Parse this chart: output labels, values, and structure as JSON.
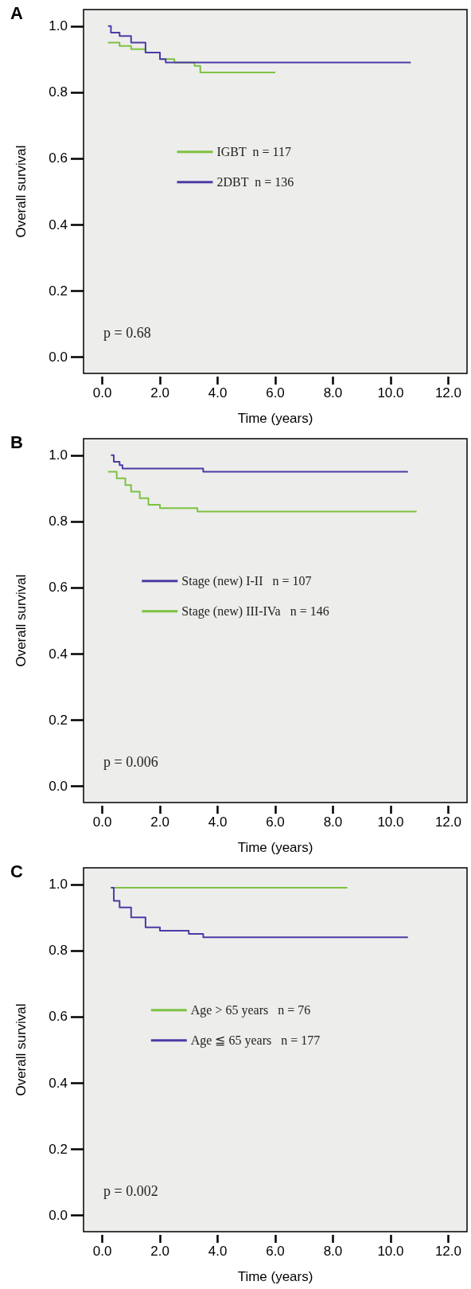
{
  "chart_data": [
    {
      "type": "step",
      "title": "A",
      "xlabel": "Time (years)",
      "ylabel": "Overall survival",
      "annotations": [
        "p = 0.68"
      ],
      "legend": "center",
      "grid": false,
      "xlim": [
        -0.65,
        12.65
      ],
      "ylim": [
        -0.05,
        1.05
      ],
      "xticks": [
        {
          "value": 0,
          "label": "0.0"
        },
        {
          "value": 2,
          "label": "2.0"
        },
        {
          "value": 4,
          "label": "4.0"
        },
        {
          "value": 6,
          "label": "6.0"
        },
        {
          "value": 8,
          "label": "8.0"
        },
        {
          "value": 10,
          "label": "10.0"
        },
        {
          "value": 12,
          "label": "12.0"
        }
      ],
      "yticks": [
        {
          "value": 0,
          "label": "0.0"
        },
        {
          "value": 0.2,
          "label": "0.2"
        },
        {
          "value": 0.4,
          "label": "0.4"
        },
        {
          "value": 0.6,
          "label": "0.6"
        },
        {
          "value": 0.8,
          "label": "0.8"
        },
        {
          "value": 1,
          "label": "1.0"
        }
      ],
      "series": [
        {
          "name": "IGBT  n = 117",
          "color": "#7dc242",
          "x": [
            0.2,
            0.3,
            0.6,
            1.0,
            1.5,
            2.0,
            2.5,
            3.2,
            3.4,
            6.0
          ],
          "values": [
            0.95,
            0.95,
            0.94,
            0.93,
            0.92,
            0.9,
            0.89,
            0.88,
            0.86,
            0.86
          ]
        },
        {
          "name": "2DBT  n = 136",
          "color": "#4b3ca6",
          "x": [
            0.2,
            0.3,
            0.6,
            1.0,
            1.5,
            2.0,
            2.2,
            10.7
          ],
          "values": [
            1.0,
            0.98,
            0.97,
            0.95,
            0.92,
            0.9,
            0.89,
            0.89
          ]
        }
      ]
    },
    {
      "type": "step",
      "title": "B",
      "xlabel": "Time (years)",
      "ylabel": "Overall survival",
      "annotations": [
        "p = 0.006"
      ],
      "legend": "center",
      "grid": false,
      "xlim": [
        -0.65,
        12.65
      ],
      "ylim": [
        -0.05,
        1.05
      ],
      "xticks": [
        {
          "value": 0,
          "label": "0.0"
        },
        {
          "value": 2,
          "label": "2.0"
        },
        {
          "value": 4,
          "label": "4.0"
        },
        {
          "value": 6,
          "label": "6.0"
        },
        {
          "value": 8,
          "label": "8.0"
        },
        {
          "value": 10,
          "label": "10.0"
        },
        {
          "value": 12,
          "label": "12.0"
        }
      ],
      "yticks": [
        {
          "value": 0,
          "label": "0.0"
        },
        {
          "value": 0.2,
          "label": "0.2"
        },
        {
          "value": 0.4,
          "label": "0.4"
        },
        {
          "value": 0.6,
          "label": "0.6"
        },
        {
          "value": 0.8,
          "label": "0.8"
        },
        {
          "value": 1,
          "label": "1.0"
        }
      ],
      "series": [
        {
          "name": "Stage (new) I-II   n = 107",
          "color": "#4b3ca6",
          "x": [
            0.3,
            0.4,
            0.6,
            0.7,
            3.5,
            10.6
          ],
          "values": [
            1.0,
            0.98,
            0.97,
            0.96,
            0.95,
            0.95
          ]
        },
        {
          "name": "Stage (new) III-IVa   n = 146",
          "color": "#7dc242",
          "x": [
            0.2,
            0.5,
            0.8,
            1.0,
            1.3,
            1.6,
            2.0,
            3.3,
            10.9
          ],
          "values": [
            0.95,
            0.93,
            0.91,
            0.89,
            0.87,
            0.85,
            0.84,
            0.83,
            0.83
          ]
        }
      ]
    },
    {
      "type": "step",
      "title": "C",
      "xlabel": "Time (years)",
      "ylabel": "Overall survival",
      "annotations": [
        "p = 0.002"
      ],
      "legend": "center",
      "grid": false,
      "xlim": [
        -0.65,
        12.65
      ],
      "ylim": [
        -0.05,
        1.05
      ],
      "xticks": [
        {
          "value": 0,
          "label": "0.0"
        },
        {
          "value": 2,
          "label": "2.0"
        },
        {
          "value": 4,
          "label": "4.0"
        },
        {
          "value": 6,
          "label": "6.0"
        },
        {
          "value": 8,
          "label": "8.0"
        },
        {
          "value": 10,
          "label": "10.0"
        },
        {
          "value": 12,
          "label": "12.0"
        }
      ],
      "yticks": [
        {
          "value": 0,
          "label": "0.0"
        },
        {
          "value": 0.2,
          "label": "0.2"
        },
        {
          "value": 0.4,
          "label": "0.4"
        },
        {
          "value": 0.6,
          "label": "0.6"
        },
        {
          "value": 0.8,
          "label": "0.8"
        },
        {
          "value": 1,
          "label": "1.0"
        }
      ],
      "series": [
        {
          "name": "Age > 65 years   n = 76",
          "color": "#7dc242",
          "x": [
            0.3,
            8.5
          ],
          "values": [
            0.99,
            0.99
          ]
        },
        {
          "name": "Age ≦ 65 years   n = 177",
          "color": "#4b3ca6",
          "x": [
            0.3,
            0.4,
            0.6,
            1.0,
            1.5,
            2.0,
            3.0,
            3.5,
            10.6
          ],
          "values": [
            0.99,
            0.95,
            0.93,
            0.9,
            0.87,
            0.86,
            0.85,
            0.84,
            0.84
          ]
        }
      ]
    }
  ]
}
